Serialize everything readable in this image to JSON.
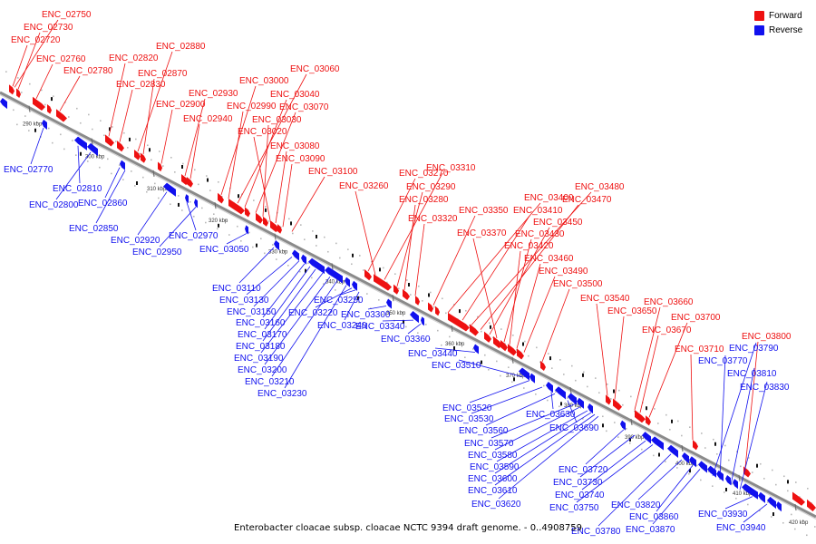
{
  "legend": [
    {
      "label": "Forward",
      "color": "#ee1111"
    },
    {
      "label": "Reverse",
      "color": "#1111ee"
    }
  ],
  "caption": "Enterobacter cloacae subsp. cloacae NCTC 9394 draft genome. - 0..4908759",
  "colors": {
    "forward": "#ee1111",
    "reverse": "#1111ee",
    "backbone": "#8a8a8a"
  },
  "ticks": [
    "290 kbp",
    "300 kbp",
    "310 kbp",
    "320 kbp",
    "330 kbp",
    "340 kbp",
    "350 kbp",
    "360 kbp",
    "370 kbp",
    "380 kbp",
    "390 kbp",
    "400 kbp",
    "410 kbp",
    "420 kbp"
  ],
  "forward_labels": [
    "ENC_02750",
    "ENC_02730",
    "ENC_02720",
    "ENC_02760",
    "ENC_02780",
    "ENC_02820",
    "ENC_02830",
    "ENC_02880",
    "ENC_02870",
    "ENC_02900",
    "ENC_02930",
    "ENC_02940",
    "ENC_03000",
    "ENC_02990",
    "ENC_03060",
    "ENC_03040",
    "ENC_03070",
    "ENC_03030",
    "ENC_03020",
    "ENC_03080",
    "ENC_03090",
    "ENC_03100",
    "ENC_03270",
    "ENC_03260",
    "ENC_03310",
    "ENC_03290",
    "ENC_03280",
    "ENC_03320",
    "ENC_03350",
    "ENC_03400",
    "ENC_03410",
    "ENC_03480",
    "ENC_03470",
    "ENC_03450",
    "ENC_03370",
    "ENC_03430",
    "ENC_03420",
    "ENC_03460",
    "ENC_03490",
    "ENC_03500",
    "ENC_03540",
    "ENC_03650",
    "ENC_03660",
    "ENC_03670",
    "ENC_03700",
    "ENC_03710",
    "ENC_03800"
  ],
  "reverse_labels": [
    "ENC_02770",
    "ENC_02810",
    "ENC_02800",
    "ENC_02860",
    "ENC_02850",
    "ENC_02920",
    "ENC_02970",
    "ENC_02950",
    "ENC_03050",
    "ENC_03110",
    "ENC_03130",
    "ENC_03150",
    "ENC_03160",
    "ENC_03170",
    "ENC_03180",
    "ENC_03190",
    "ENC_03200",
    "ENC_03210",
    "ENC_03230",
    "ENC_03220",
    "ENC_03250",
    "ENC_03240",
    "ENC_03300",
    "ENC_03340",
    "ENC_03360",
    "ENC_03440",
    "ENC_03510",
    "ENC_03520",
    "ENC_03530",
    "ENC_03630",
    "ENC_03560",
    "ENC_03690",
    "ENC_03570",
    "ENC_03580",
    "ENC_03590",
    "ENC_03600",
    "ENC_03610",
    "ENC_03620",
    "ENC_03720",
    "ENC_03730",
    "ENC_03740",
    "ENC_03750",
    "ENC_03780",
    "ENC_03820",
    "ENC_03860",
    "ENC_03870",
    "ENC_03790",
    "ENC_03770",
    "ENC_03810",
    "ENC_03830",
    "ENC_03930",
    "ENC_03940"
  ]
}
